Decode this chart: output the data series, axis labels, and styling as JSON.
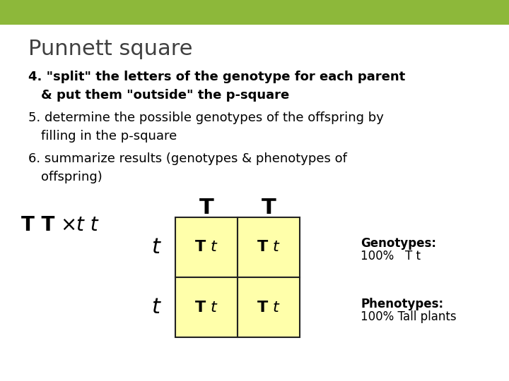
{
  "title": "Punnett square",
  "title_color": "#404040",
  "header_bar_color": "#8db83a",
  "background_color": "#ffffff",
  "line4_prefix": "4. ",
  "line4_bold": "\"split\" the letters of the genotype for each parent",
  "line4b_bold": "  & put them \"outside\" the p-square",
  "line5": "5. determine the possible genotypes of the offspring by",
  "line5b": "  filling in the p-square",
  "line6": "6. summarize results (genotypes & phenotypes of",
  "line6b": "  offspring)",
  "cross_TT": "T T",
  "cross_x": "×",
  "cross_tt": "t t",
  "col_headers": [
    "T",
    "T"
  ],
  "row_headers": [
    "t",
    "t"
  ],
  "cell_fill_color": "#ffffaa",
  "cell_border_color": "#222222",
  "genotypes_label": "Genotypes:",
  "genotypes_value": "100%   T t",
  "phenotypes_label": "Phenotypes:",
  "phenotypes_value": "100% Tall plants"
}
